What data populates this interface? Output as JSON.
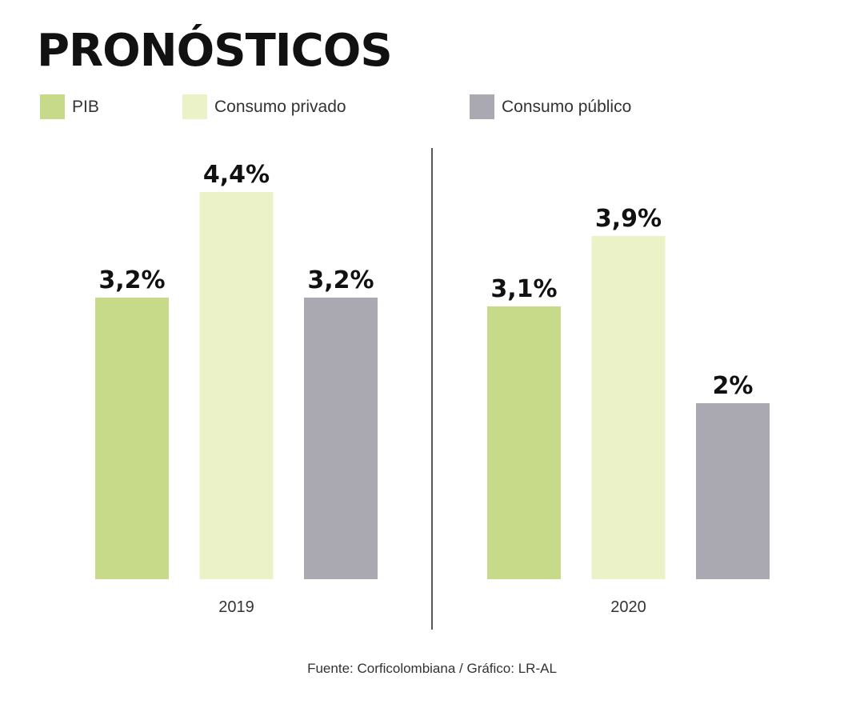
{
  "title": "PRONÓSTICOS",
  "source": "Fuente: Corficolombiana / Gráfico: LR-AL",
  "legend": [
    {
      "label": "PIB",
      "color": "#c7da8a"
    },
    {
      "label": "Consumo privado",
      "color": "#ebf2c7"
    },
    {
      "label": "Consumo público",
      "color": "#aaa8b0"
    }
  ],
  "chart_data": {
    "type": "bar",
    "title": "PRONÓSTICOS",
    "categories": [
      "2019",
      "2020"
    ],
    "series": [
      {
        "name": "PIB",
        "values": [
          3.2,
          3.1
        ],
        "labels": [
          "3,2%",
          "3,1%"
        ],
        "color": "#c7da8a"
      },
      {
        "name": "Consumo privado",
        "values": [
          4.4,
          3.9
        ],
        "labels": [
          "4,4%",
          "3,9%"
        ],
        "color": "#ebf2c7"
      },
      {
        "name": "Consumo público",
        "values": [
          3.2,
          2.0
        ],
        "labels": [
          "3,2%",
          "2%"
        ],
        "color": "#aaa8b0"
      }
    ],
    "xlabel": "",
    "ylabel": "",
    "ylim": [
      0,
      4.4
    ],
    "grid": false,
    "legend_position": "top"
  }
}
